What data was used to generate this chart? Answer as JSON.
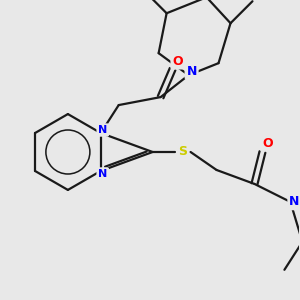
{
  "bg_color": "#e8e8e8",
  "bond_color": "#1a1a1a",
  "n_color": "#0000ff",
  "o_color": "#ff0000",
  "s_color": "#cccc00",
  "line_width": 1.6,
  "figsize": [
    3.0,
    3.0
  ],
  "dpi": 100,
  "xlim": [
    0,
    300
  ],
  "ylim": [
    0,
    300
  ]
}
